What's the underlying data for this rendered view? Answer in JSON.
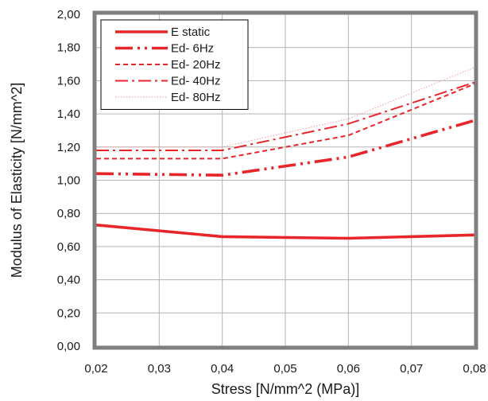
{
  "chart_data": {
    "type": "line",
    "xlabel": "Stress [N/mm^2 (MPa)]",
    "ylabel": "Modulus of Elasticity [N/mm^2]",
    "xlim": [
      0.02,
      0.08
    ],
    "ylim": [
      0.0,
      2.0
    ],
    "x_ticks": [
      "0,02",
      "0,03",
      "0,04",
      "0,05",
      "0,06",
      "0,07",
      "0,08"
    ],
    "y_ticks": [
      "0,00",
      "0,20",
      "0,40",
      "0,60",
      "0,80",
      "1,00",
      "1,20",
      "1,40",
      "1,60",
      "1,80",
      "2,00"
    ],
    "grid": true,
    "legend_position": "top-left",
    "x": [
      0.02,
      0.04,
      0.06,
      0.08
    ],
    "series": [
      {
        "name": "E static",
        "values": [
          0.73,
          0.66,
          0.65,
          0.67
        ],
        "color": "#e8262a",
        "style": "solid-thick"
      },
      {
        "name": "Ed- 6Hz",
        "values": [
          1.04,
          1.03,
          1.14,
          1.36
        ],
        "color": "#e8262a",
        "style": "dash-dot-dot-thick"
      },
      {
        "name": "Ed- 20Hz",
        "values": [
          1.13,
          1.13,
          1.27,
          1.58
        ],
        "color": "#e8262a",
        "style": "short-dash"
      },
      {
        "name": "Ed- 40Hz",
        "values": [
          1.18,
          1.18,
          1.34,
          1.59
        ],
        "color": "#e8262a",
        "style": "long-dash-dot"
      },
      {
        "name": "Ed- 80Hz",
        "values": [
          1.2,
          1.2,
          1.37,
          1.68
        ],
        "color": "#f09a9a",
        "style": "dotted-thin"
      }
    ],
    "colors": {
      "plot_border": "#7f7f7f",
      "grid": "#b3b3b3",
      "legend_border": "#000000"
    }
  }
}
